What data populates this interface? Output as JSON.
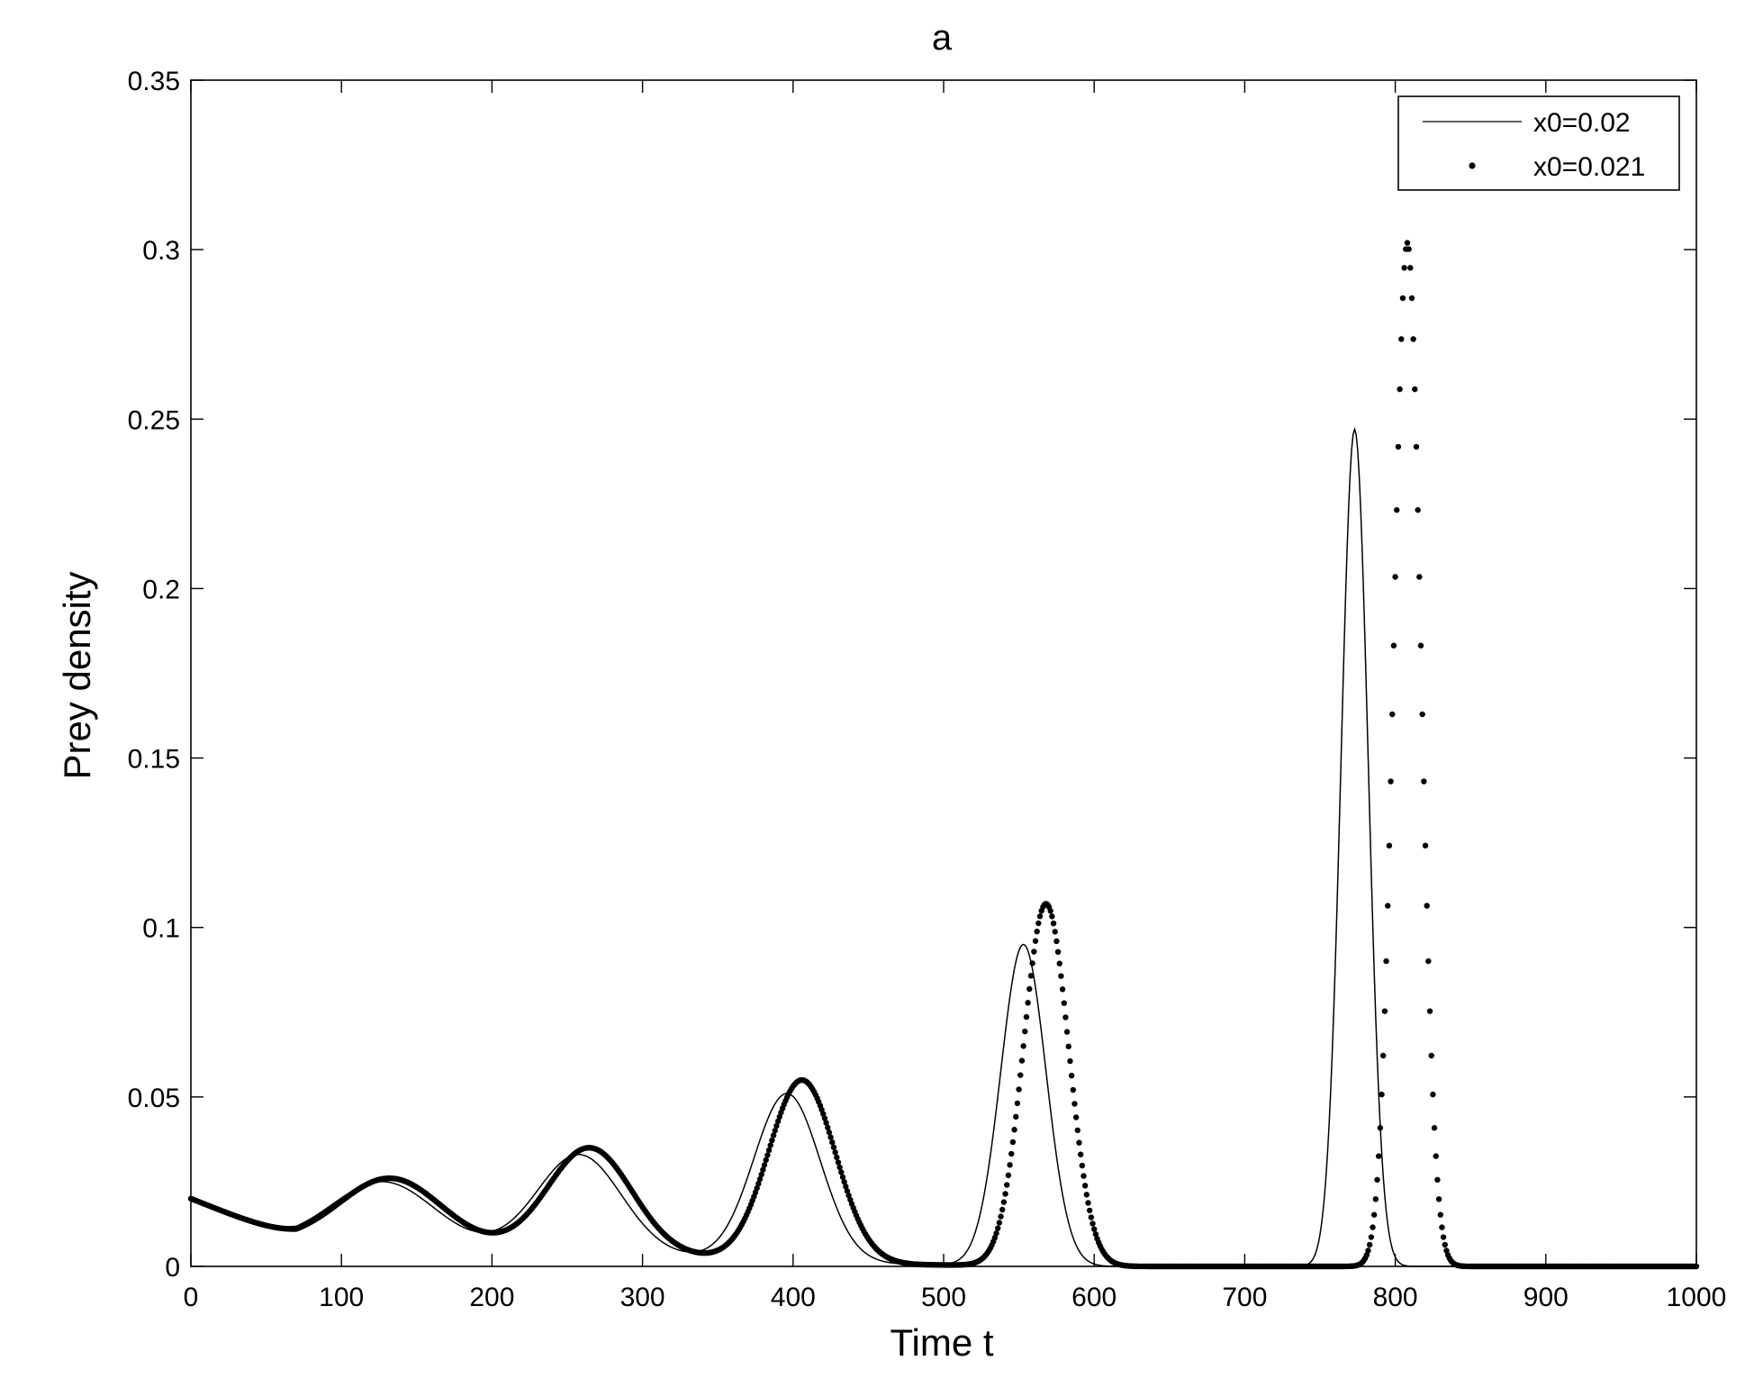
{
  "chart_data": {
    "type": "line",
    "title": "a",
    "xlabel": "Time t",
    "ylabel": "Prey density",
    "xlim": [
      0,
      1000
    ],
    "ylim": [
      0,
      0.35
    ],
    "xticks": [
      0,
      100,
      200,
      300,
      400,
      500,
      600,
      700,
      800,
      900,
      1000
    ],
    "yticks": [
      0,
      0.05,
      0.1,
      0.15,
      0.2,
      0.25,
      0.3,
      0.35
    ],
    "xtick_labels": [
      "0",
      "100",
      "200",
      "300",
      "400",
      "500",
      "600",
      "700",
      "800",
      "900",
      "1000"
    ],
    "ytick_labels": [
      "0",
      "0.05",
      "0.1",
      "0.15",
      "0.2",
      "0.25",
      "0.3",
      "0.35"
    ],
    "grid": false,
    "legend_position": "top-right",
    "series": [
      {
        "name": "x0=0.02",
        "style": "solid line",
        "color": "#000000",
        "peaks": [
          {
            "t": 128,
            "v": 0.025,
            "w": 34
          },
          {
            "t": 258,
            "v": 0.033,
            "w": 28
          },
          {
            "t": 396,
            "v": 0.051,
            "w": 22
          },
          {
            "t": 553,
            "v": 0.095,
            "w": 15
          },
          {
            "t": 773,
            "v": 0.247,
            "w": 9
          }
        ]
      },
      {
        "name": "x0=0.021",
        "style": "dots",
        "color": "#000000",
        "peaks": [
          {
            "t": 133,
            "v": 0.026,
            "w": 34
          },
          {
            "t": 265,
            "v": 0.035,
            "w": 28
          },
          {
            "t": 406,
            "v": 0.055,
            "w": 22
          },
          {
            "t": 568,
            "v": 0.107,
            "w": 15
          },
          {
            "t": 808,
            "v": 0.302,
            "w": 9
          }
        ]
      }
    ],
    "baseline": {
      "t": [
        0,
        70,
        200,
        340,
        480,
        600,
        1000
      ],
      "v": [
        0.02,
        0.0075,
        0.005,
        0.0025,
        0.0005,
        0.0,
        0.0
      ]
    }
  }
}
